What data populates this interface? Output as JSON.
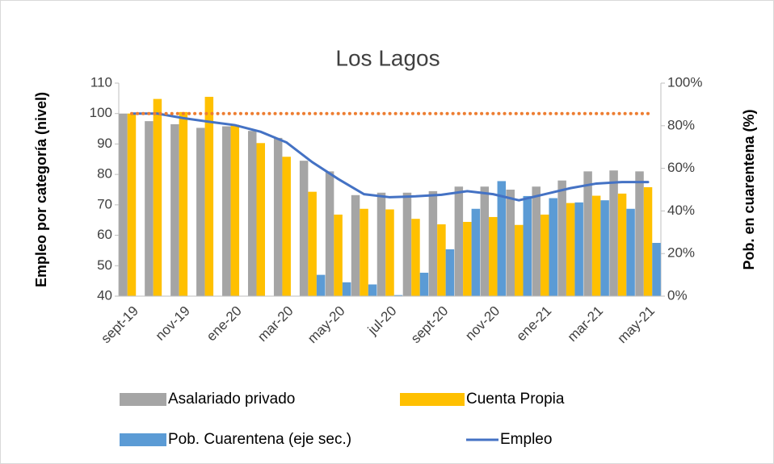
{
  "chart_data": {
    "type": "bar",
    "title": "Los Lagos",
    "y_label": "Empleo por categoría (nivel)",
    "y2_label": "Pob. en cuarentena (%)",
    "categories": [
      "sept-19",
      null,
      "nov-19",
      null,
      "ene-20",
      null,
      "mar-20",
      null,
      "may-20",
      null,
      "jul-20",
      null,
      "sept-20",
      null,
      "nov-20",
      null,
      "ene-21",
      null,
      "mar-21",
      null,
      "may-21"
    ],
    "series": [
      {
        "name": "Asalariado privado",
        "type": "bar",
        "color": "#a5a5a5",
        "values": [
          100,
          97.5,
          96.5,
          95.3,
          95.8,
          94.3,
          92,
          84.5,
          81,
          73.2,
          74,
          74,
          74.5,
          76,
          76,
          75,
          76,
          78,
          81,
          81.3,
          81
        ]
      },
      {
        "name": "Cuenta Propia",
        "type": "bar",
        "color": "#ffc000",
        "values": [
          100,
          104.8,
          100.5,
          105.5,
          96.3,
          90.3,
          85.8,
          74.3,
          66.8,
          68.7,
          68.5,
          65.4,
          63.6,
          64.4,
          66,
          63.4,
          66.8,
          70.6,
          73,
          73.7,
          75.8
        ]
      },
      {
        "name": "Pob. Cuarentena (eje sec.)",
        "type": "bar",
        "axis": "y2",
        "color": "#5b9bd5",
        "values": [
          null,
          null,
          null,
          null,
          null,
          null,
          null,
          10,
          6.5,
          5.5,
          0.5,
          11,
          22,
          41,
          54,
          47,
          46,
          44,
          45,
          41,
          25
        ]
      },
      {
        "name": "Empleo",
        "type": "line",
        "color": "#4472c4",
        "values": [
          100,
          100,
          98.5,
          97.3,
          96.2,
          94,
          90.5,
          84,
          78.5,
          73.5,
          72.5,
          72.8,
          73.3,
          74.5,
          73.5,
          71.5,
          73.5,
          75.5,
          77,
          77.5,
          77.5
        ]
      },
      {
        "type": "line",
        "dotted": true,
        "color": "#ed7d31",
        "values": [
          100,
          100,
          100,
          100,
          100,
          100,
          100,
          100,
          100,
          100,
          100,
          100,
          100,
          100,
          100,
          100,
          100,
          100,
          100,
          100,
          100
        ]
      }
    ],
    "ylim": [
      40,
      110
    ],
    "yticks": [
      40,
      50,
      60,
      70,
      80,
      90,
      100,
      110
    ],
    "y2lim": [
      0,
      100
    ],
    "y2ticks": [
      {
        "value": 0,
        "label": "0%"
      },
      {
        "value": 20,
        "label": "20%"
      },
      {
        "value": 40,
        "label": "40%"
      },
      {
        "value": 60,
        "label": "60%"
      },
      {
        "value": 80,
        "label": "80%"
      },
      {
        "value": 100,
        "label": "100%"
      }
    ],
    "legend": "bottom"
  }
}
